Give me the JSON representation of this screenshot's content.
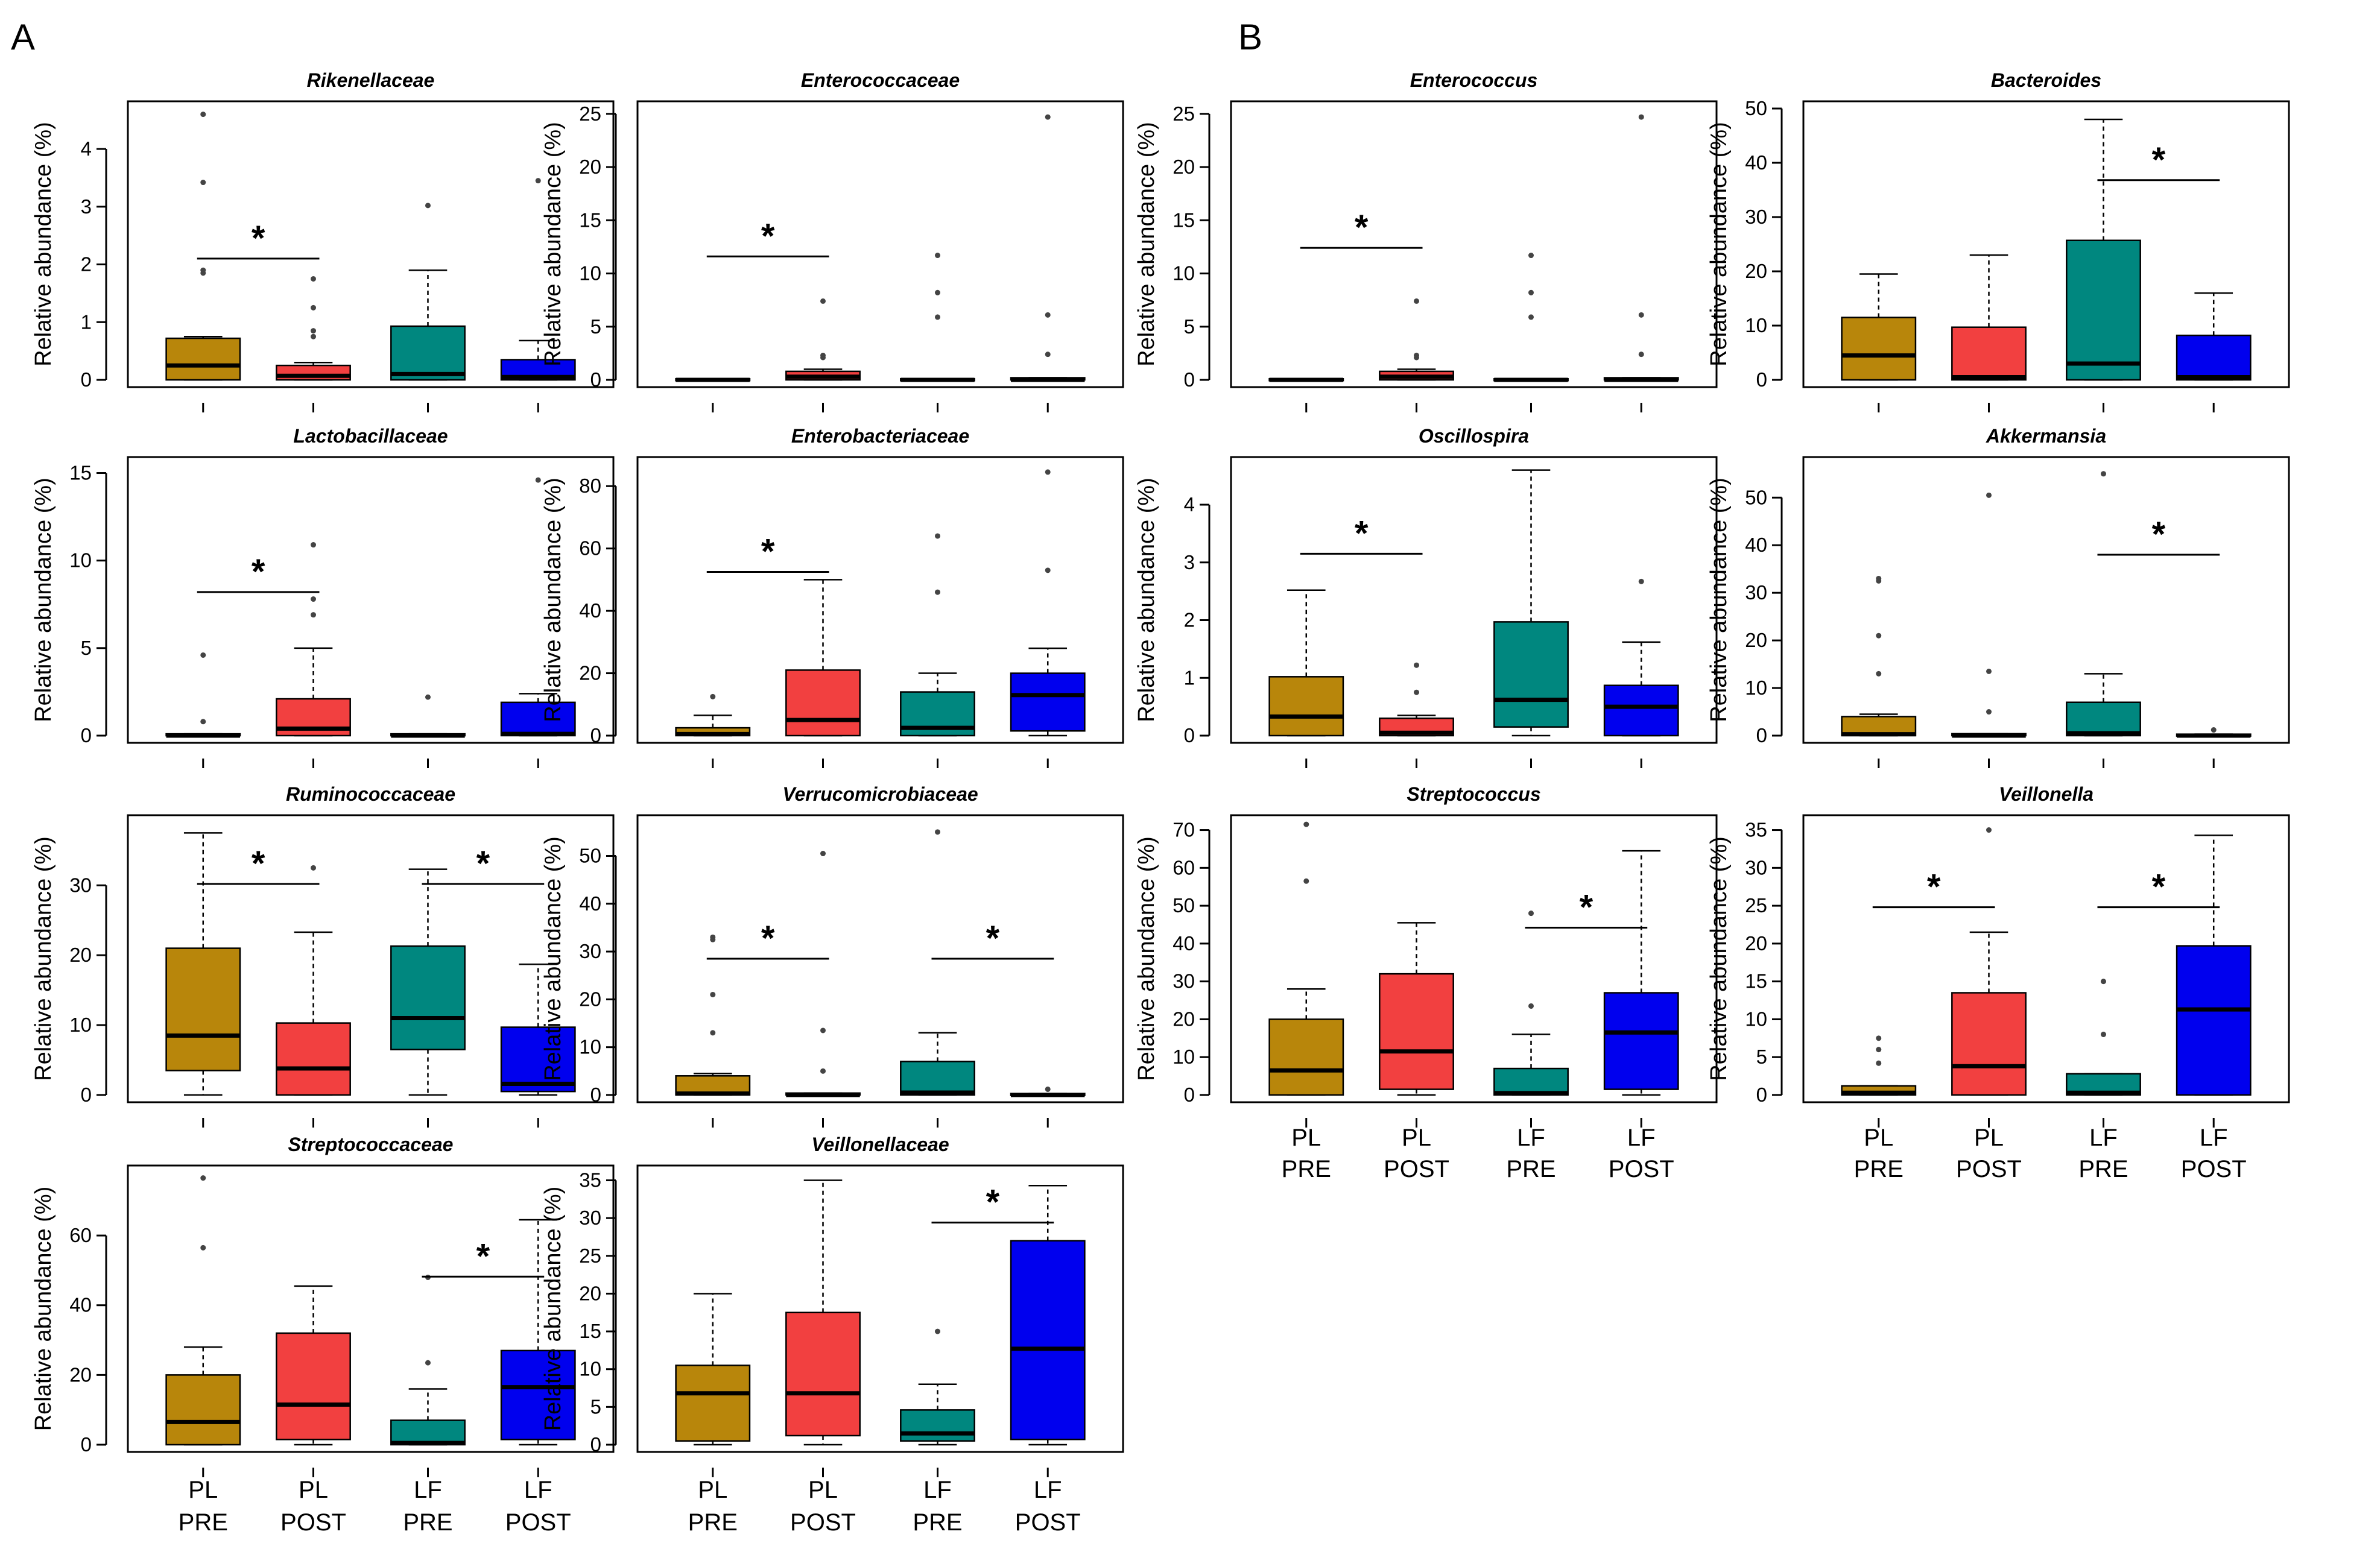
{
  "panel_labels": [
    "A",
    "B"
  ],
  "groups": [
    "PL\nPRE",
    "PL\nPOST",
    "LF\nPRE",
    "LF\nPOST"
  ],
  "group_lines": [
    [
      "PL",
      "PRE"
    ],
    [
      "PL",
      "POST"
    ],
    [
      "LF",
      "PRE"
    ],
    [
      "LF",
      "POST"
    ]
  ],
  "colors": [
    "#b8860b",
    "#f24040",
    "#00877f",
    "#0000ee"
  ],
  "ylabel": "Relative abundance (%)",
  "chart_data": [
    {
      "type": "box",
      "panel": "A",
      "title": "Rikenellaceae",
      "ylabel": "Relative abundance (%)",
      "ylim": [
        0,
        4.7
      ],
      "yticks": [
        0,
        1,
        2,
        3,
        4
      ],
      "boxes": [
        {
          "q1": 0,
          "med": 0.25,
          "q3": 0.72,
          "wlo": 0,
          "whi": 0.75,
          "out": [
            1.85,
            1.9,
            3.42,
            4.6
          ]
        },
        {
          "q1": 0,
          "med": 0.07,
          "q3": 0.25,
          "wlo": 0,
          "whi": 0.3,
          "out": [
            0.75,
            0.85,
            1.25,
            1.75
          ]
        },
        {
          "q1": 0,
          "med": 0.1,
          "q3": 0.93,
          "wlo": 0,
          "whi": 1.9,
          "out": [
            3.02
          ]
        },
        {
          "q1": 0,
          "med": 0.05,
          "q3": 0.35,
          "wlo": 0,
          "whi": 0.68,
          "out": [
            3.45
          ]
        }
      ],
      "sig": [
        {
          "from": 0,
          "to": 1,
          "y": 2.1
        }
      ]
    },
    {
      "type": "box",
      "panel": "A",
      "title": "Enterococcaceae",
      "ylabel": "Relative abundance (%)",
      "ylim": [
        0,
        25.5
      ],
      "yticks": [
        0,
        5,
        10,
        15,
        20,
        25
      ],
      "boxes": [
        {
          "q1": 0,
          "med": 0,
          "q3": 0.1,
          "wlo": 0,
          "whi": 0.1,
          "out": []
        },
        {
          "q1": 0,
          "med": 0.3,
          "q3": 0.8,
          "wlo": 0,
          "whi": 1.0,
          "out": [
            2.1,
            2.3,
            7.4
          ]
        },
        {
          "q1": 0,
          "med": 0,
          "q3": 0.1,
          "wlo": 0,
          "whi": 0.1,
          "out": [
            5.9,
            8.2,
            11.7
          ]
        },
        {
          "q1": 0,
          "med": 0,
          "q3": 0.2,
          "wlo": 0,
          "whi": 0.2,
          "out": [
            2.4,
            6.1,
            24.7
          ]
        }
      ],
      "sig": [
        {
          "from": 0,
          "to": 1,
          "y": 11.6
        }
      ]
    },
    {
      "type": "box",
      "panel": "A",
      "title": "Lactobacillaceae",
      "ylabel": "Relative abundance (%)",
      "ylim": [
        0,
        15.5
      ],
      "yticks": [
        0,
        5,
        10,
        15
      ],
      "boxes": [
        {
          "q1": 0,
          "med": 0,
          "q3": 0.1,
          "wlo": 0,
          "whi": 0.1,
          "out": [
            0.8,
            4.6
          ]
        },
        {
          "q1": 0,
          "med": 0.4,
          "q3": 2.1,
          "wlo": 0,
          "whi": 5.0,
          "out": [
            6.9,
            7.8,
            10.9
          ]
        },
        {
          "q1": 0,
          "med": 0,
          "q3": 0.1,
          "wlo": 0,
          "whi": 0.1,
          "out": [
            2.2
          ]
        },
        {
          "q1": 0,
          "med": 0.1,
          "q3": 1.9,
          "wlo": 0,
          "whi": 2.4,
          "out": [
            14.6
          ]
        }
      ],
      "sig": [
        {
          "from": 0,
          "to": 1,
          "y": 8.2
        }
      ]
    },
    {
      "type": "box",
      "panel": "A",
      "title": "Enterobacteriaceae",
      "ylabel": "Relative abundance (%)",
      "ylim": [
        0,
        87
      ],
      "yticks": [
        0,
        20,
        40,
        60,
        80
      ],
      "boxes": [
        {
          "q1": 0,
          "med": 0.5,
          "q3": 2.5,
          "wlo": 0,
          "whi": 6.5,
          "out": [
            12.5
          ]
        },
        {
          "q1": 0,
          "med": 5,
          "q3": 21,
          "wlo": 0,
          "whi": 50,
          "out": []
        },
        {
          "q1": 0,
          "med": 2.5,
          "q3": 14,
          "wlo": 0,
          "whi": 20,
          "out": [
            46,
            64
          ]
        },
        {
          "q1": 1.5,
          "med": 13,
          "q3": 20,
          "wlo": 0,
          "whi": 28,
          "out": [
            53,
            84.5
          ]
        }
      ],
      "sig": [
        {
          "from": 0,
          "to": 1,
          "y": 52.5
        }
      ]
    },
    {
      "type": "box",
      "panel": "A",
      "title": "Ruminococcaceae",
      "ylabel": "Relative abundance (%)",
      "ylim": [
        0,
        39
      ],
      "yticks": [
        0,
        10,
        20,
        30
      ],
      "boxes": [
        {
          "q1": 3.5,
          "med": 8.5,
          "q3": 21,
          "wlo": 0,
          "whi": 37.5,
          "out": []
        },
        {
          "q1": 0,
          "med": 3.8,
          "q3": 10.3,
          "wlo": 0,
          "whi": 23.3,
          "out": [
            32.5
          ]
        },
        {
          "q1": 6.5,
          "med": 11,
          "q3": 21.3,
          "wlo": 0,
          "whi": 32.3,
          "out": []
        },
        {
          "q1": 0.5,
          "med": 1.6,
          "q3": 9.7,
          "wlo": 0,
          "whi": 18.7,
          "out": []
        }
      ],
      "sig": [
        {
          "from": 0,
          "to": 1,
          "y": 30.2
        },
        {
          "from": 2,
          "to": 3,
          "y": 30.2
        }
      ]
    },
    {
      "type": "box",
      "panel": "A",
      "title": "Verrucomicrobiaceae",
      "ylabel": "Relative abundance (%)",
      "ylim": [
        0,
        57
      ],
      "yticks": [
        0,
        10,
        20,
        30,
        40,
        50
      ],
      "boxes": [
        {
          "q1": 0,
          "med": 0.3,
          "q3": 4,
          "wlo": 0,
          "whi": 4.5,
          "out": [
            13,
            21,
            32.5,
            33
          ]
        },
        {
          "q1": 0,
          "med": 0,
          "q3": 0.4,
          "wlo": 0,
          "whi": 0.4,
          "out": [
            5,
            13.5,
            50.5
          ]
        },
        {
          "q1": 0,
          "med": 0.5,
          "q3": 7,
          "wlo": 0,
          "whi": 13,
          "out": [
            55
          ]
        },
        {
          "q1": 0,
          "med": 0,
          "q3": 0.3,
          "wlo": 0,
          "whi": 0.3,
          "out": [
            1.2
          ]
        }
      ],
      "sig": [
        {
          "from": 0,
          "to": 1,
          "y": 28.5
        },
        {
          "from": 2,
          "to": 3,
          "y": 28.5
        }
      ]
    },
    {
      "type": "box",
      "panel": "A",
      "title": "Streptococcaceae",
      "ylabel": "Relative abundance (%)",
      "ylim": [
        0,
        78
      ],
      "yticks": [
        0,
        20,
        40,
        60
      ],
      "boxes": [
        {
          "q1": 0,
          "med": 6.5,
          "q3": 20,
          "wlo": 0,
          "whi": 28,
          "out": [
            56.5,
            76.5
          ]
        },
        {
          "q1": 1.5,
          "med": 11.5,
          "q3": 32,
          "wlo": 0,
          "whi": 45.5,
          "out": []
        },
        {
          "q1": 0,
          "med": 0.5,
          "q3": 7,
          "wlo": 0,
          "whi": 16,
          "out": [
            23.5,
            48
          ]
        },
        {
          "q1": 1.5,
          "med": 16.5,
          "q3": 27,
          "wlo": 0,
          "whi": 64.5,
          "out": []
        }
      ],
      "sig": [
        {
          "from": 2,
          "to": 3,
          "y": 48.2
        }
      ]
    },
    {
      "type": "box",
      "panel": "A",
      "title": "Veillonellaceae",
      "ylabel": "Relative abundance (%)",
      "ylim": [
        0,
        36
      ],
      "yticks": [
        0,
        5,
        10,
        15,
        20,
        25,
        30,
        35
      ],
      "boxes": [
        {
          "q1": 0.5,
          "med": 6.8,
          "q3": 10.5,
          "wlo": 0,
          "whi": 20,
          "out": []
        },
        {
          "q1": 1.2,
          "med": 6.8,
          "q3": 17.5,
          "wlo": 0,
          "whi": 35,
          "out": []
        },
        {
          "q1": 0.5,
          "med": 1.5,
          "q3": 4.6,
          "wlo": 0,
          "whi": 8,
          "out": [
            15
          ]
        },
        {
          "q1": 0.7,
          "med": 12.7,
          "q3": 27,
          "wlo": 0,
          "whi": 34.3,
          "out": []
        }
      ],
      "sig": [
        {
          "from": 2,
          "to": 3,
          "y": 29.4
        }
      ]
    },
    {
      "type": "box",
      "panel": "B",
      "title": "Enterococcus",
      "ylabel": "Relative abundance (%)",
      "ylim": [
        0,
        25.5
      ],
      "yticks": [
        0,
        5,
        10,
        15,
        20,
        25
      ],
      "boxes": [
        {
          "q1": 0,
          "med": 0,
          "q3": 0.1,
          "wlo": 0,
          "whi": 0.1,
          "out": []
        },
        {
          "q1": 0,
          "med": 0.3,
          "q3": 0.8,
          "wlo": 0,
          "whi": 1.0,
          "out": [
            2.1,
            2.3,
            7.4
          ]
        },
        {
          "q1": 0,
          "med": 0,
          "q3": 0.1,
          "wlo": 0,
          "whi": 0.1,
          "out": [
            5.9,
            8.2,
            11.7
          ]
        },
        {
          "q1": 0,
          "med": 0,
          "q3": 0.2,
          "wlo": 0,
          "whi": 0.2,
          "out": [
            2.4,
            6.1,
            24.7
          ]
        }
      ],
      "sig": [
        {
          "from": 0,
          "to": 1,
          "y": 12.4
        }
      ]
    },
    {
      "type": "box",
      "panel": "B",
      "title": "Bacteroides",
      "ylabel": "Relative abundance (%)",
      "ylim": [
        0,
        50
      ],
      "yticks": [
        0,
        10,
        20,
        30,
        40,
        50
      ],
      "boxes": [
        {
          "q1": 0,
          "med": 4.5,
          "q3": 11.5,
          "wlo": 0,
          "whi": 19.5,
          "out": []
        },
        {
          "q1": 0,
          "med": 0.5,
          "q3": 9.7,
          "wlo": 0,
          "whi": 23,
          "out": []
        },
        {
          "q1": 0,
          "med": 3,
          "q3": 25.7,
          "wlo": 0,
          "whi": 48,
          "out": []
        },
        {
          "q1": 0,
          "med": 0.5,
          "q3": 8.2,
          "wlo": 0,
          "whi": 16,
          "out": []
        }
      ],
      "sig": [
        {
          "from": 2,
          "to": 3,
          "y": 36.8
        }
      ]
    },
    {
      "type": "box",
      "panel": "B",
      "title": "Oscillospira",
      "ylabel": "Relative abundance (%)",
      "ylim": [
        0,
        4.7
      ],
      "yticks": [
        0,
        1,
        2,
        3,
        4
      ],
      "boxes": [
        {
          "q1": 0,
          "med": 0.33,
          "q3": 1.02,
          "wlo": 0,
          "whi": 2.52,
          "out": []
        },
        {
          "q1": 0,
          "med": 0.05,
          "q3": 0.3,
          "wlo": 0,
          "whi": 0.35,
          "out": [
            0.75,
            1.22
          ]
        },
        {
          "q1": 0.15,
          "med": 0.62,
          "q3": 1.97,
          "wlo": 0,
          "whi": 4.6,
          "out": []
        },
        {
          "q1": 0,
          "med": 0.5,
          "q3": 0.87,
          "wlo": 0,
          "whi": 1.62,
          "out": [
            2.67
          ]
        }
      ],
      "sig": [
        {
          "from": 0,
          "to": 1,
          "y": 3.15
        }
      ]
    },
    {
      "type": "box",
      "panel": "B",
      "title": "Akkermansia",
      "ylabel": "Relative abundance (%)",
      "ylim": [
        0,
        57
      ],
      "yticks": [
        0,
        10,
        20,
        30,
        40,
        50
      ],
      "boxes": [
        {
          "q1": 0,
          "med": 0.3,
          "q3": 4,
          "wlo": 0,
          "whi": 4.5,
          "out": [
            13,
            21,
            32.5,
            33
          ]
        },
        {
          "q1": 0,
          "med": 0,
          "q3": 0.4,
          "wlo": 0,
          "whi": 0.4,
          "out": [
            5,
            13.5,
            50.5
          ]
        },
        {
          "q1": 0,
          "med": 0.5,
          "q3": 7,
          "wlo": 0,
          "whi": 13,
          "out": [
            55
          ]
        },
        {
          "q1": 0,
          "med": 0,
          "q3": 0.3,
          "wlo": 0,
          "whi": 0.3,
          "out": [
            1.2
          ]
        }
      ],
      "sig": [
        {
          "from": 2,
          "to": 3,
          "y": 38
        }
      ]
    },
    {
      "type": "box",
      "panel": "B",
      "title": "Streptococcus",
      "ylabel": "Relative abundance (%)",
      "ylim": [
        0,
        72
      ],
      "yticks": [
        0,
        10,
        20,
        30,
        40,
        50,
        60,
        70
      ],
      "boxes": [
        {
          "q1": 0,
          "med": 6.5,
          "q3": 20,
          "wlo": 0,
          "whi": 28,
          "out": [
            56.5,
            71.5
          ]
        },
        {
          "q1": 1.5,
          "med": 11.5,
          "q3": 32,
          "wlo": 0,
          "whi": 45.5,
          "out": []
        },
        {
          "q1": 0,
          "med": 0.5,
          "q3": 7,
          "wlo": 0,
          "whi": 16,
          "out": [
            23.5,
            48
          ]
        },
        {
          "q1": 1.5,
          "med": 16.5,
          "q3": 27,
          "wlo": 0,
          "whi": 64.5,
          "out": []
        }
      ],
      "sig": [
        {
          "from": 2,
          "to": 3,
          "y": 44.2
        }
      ]
    },
    {
      "type": "box",
      "panel": "B",
      "title": "Veillonella",
      "ylabel": "Relative abundance (%)",
      "ylim": [
        0,
        36
      ],
      "yticks": [
        0,
        5,
        10,
        15,
        20,
        25,
        30,
        35
      ],
      "boxes": [
        {
          "q1": 0,
          "med": 0.3,
          "q3": 1.2,
          "wlo": 0,
          "whi": 1.2,
          "out": [
            4.2,
            6,
            7.5
          ]
        },
        {
          "q1": 0,
          "med": 3.8,
          "q3": 13.5,
          "wlo": 0,
          "whi": 21.5,
          "out": [
            35
          ]
        },
        {
          "q1": 0,
          "med": 0.3,
          "q3": 2.8,
          "wlo": 0,
          "whi": 2.8,
          "out": [
            8,
            15
          ]
        },
        {
          "q1": 0,
          "med": 11.3,
          "q3": 19.7,
          "wlo": 0,
          "whi": 34.3,
          "out": []
        }
      ],
      "sig": [
        {
          "from": 0,
          "to": 1,
          "y": 24.8
        },
        {
          "from": 2,
          "to": 3,
          "y": 24.8
        }
      ]
    }
  ]
}
